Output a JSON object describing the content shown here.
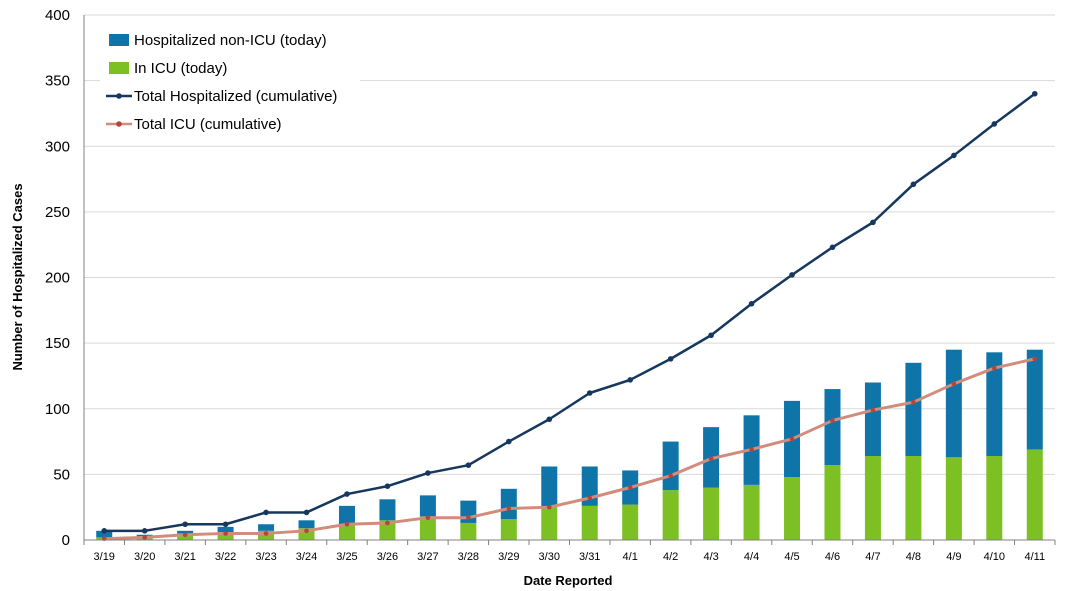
{
  "chart_data": {
    "type": "bar",
    "categories": [
      "3/19",
      "3/20",
      "3/21",
      "3/22",
      "3/23",
      "3/24",
      "3/25",
      "3/26",
      "3/27",
      "3/28",
      "3/29",
      "3/30",
      "3/31",
      "4/1",
      "4/2",
      "4/3",
      "4/4",
      "4/5",
      "4/6",
      "4/7",
      "4/8",
      "4/9",
      "4/10",
      "4/11"
    ],
    "series": [
      {
        "name": "Hospitalized non-ICU (today)",
        "type": "bar",
        "stack": "today",
        "color": "#0f75a8",
        "values": [
          5,
          2,
          2,
          4,
          5,
          6,
          14,
          16,
          16,
          17,
          23,
          31,
          30,
          26,
          37,
          46,
          53,
          58,
          58,
          56,
          71,
          82,
          79,
          76
        ]
      },
      {
        "name": "In ICU (today)",
        "type": "bar",
        "stack": "today",
        "color": "#7cc024",
        "values": [
          2,
          2,
          5,
          6,
          7,
          9,
          12,
          15,
          18,
          13,
          16,
          25,
          26,
          27,
          38,
          40,
          42,
          48,
          57,
          64,
          64,
          63,
          64,
          69
        ]
      },
      {
        "name": "Total Hospitalized (cumulative)",
        "type": "line",
        "color": "#16375e",
        "values": [
          7,
          7,
          12,
          12,
          21,
          21,
          35,
          41,
          51,
          57,
          75,
          92,
          112,
          122,
          138,
          156,
          180,
          202,
          223,
          242,
          271,
          293,
          317,
          340
        ]
      },
      {
        "name": "Total ICU (cumulative)",
        "type": "line",
        "color": "#d28c7c",
        "values": [
          1,
          2,
          4,
          5,
          5,
          7,
          12,
          13,
          17,
          17,
          24,
          25,
          32,
          40,
          49,
          62,
          69,
          77,
          91,
          99,
          105,
          119,
          131,
          138
        ]
      }
    ],
    "title": "",
    "xlabel": "Date Reported",
    "ylabel": "Number of Hospitalized  Cases",
    "ylim": [
      0,
      400
    ],
    "yticks": [
      "0",
      "50",
      "100",
      "150",
      "200",
      "250",
      "300",
      "350",
      "400"
    ],
    "grid": "horizontal",
    "legend_position": "top-left"
  }
}
